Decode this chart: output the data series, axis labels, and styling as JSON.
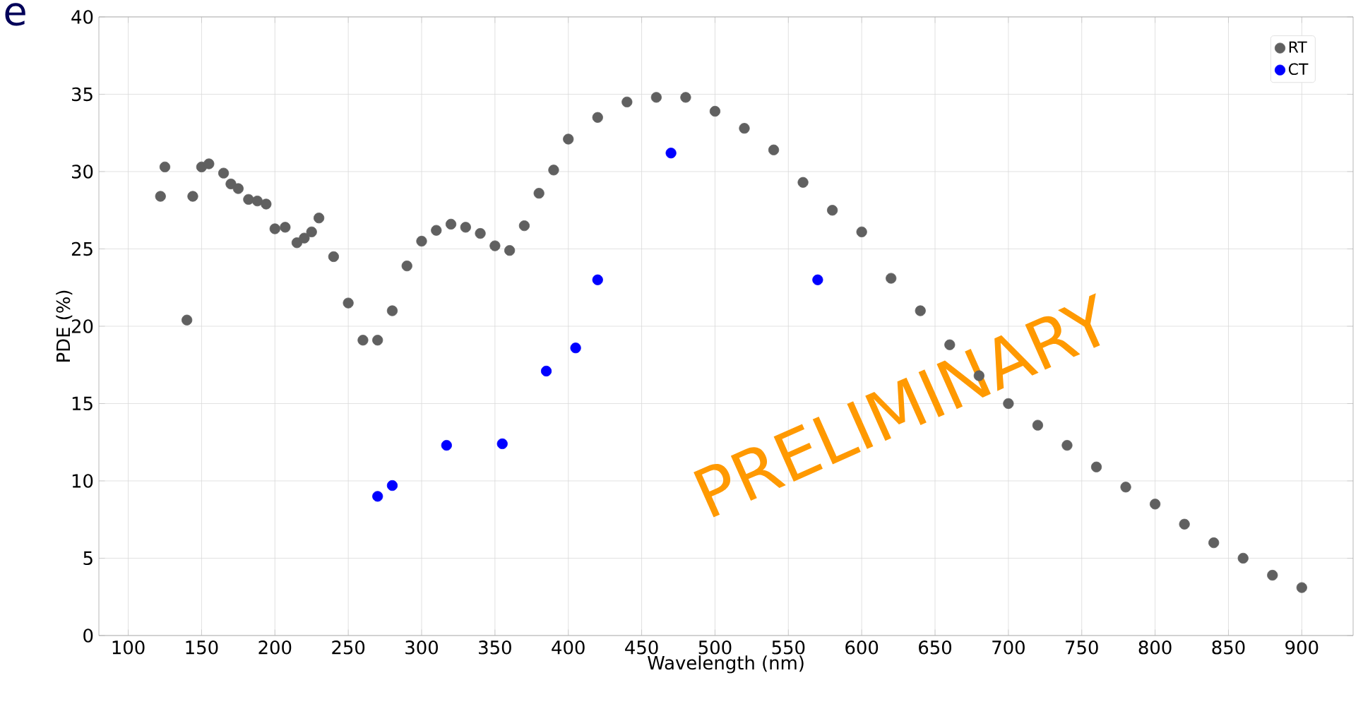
{
  "chart_data": {
    "type": "scatter",
    "xlabel": "Wavelength (nm)",
    "ylabel": "PDE (%)",
    "xlim": [
      80,
      935
    ],
    "ylim": [
      0,
      40
    ],
    "xticks": [
      100,
      150,
      200,
      250,
      300,
      350,
      400,
      450,
      500,
      550,
      600,
      650,
      700,
      750,
      800,
      850,
      900
    ],
    "yticks": [
      0,
      5,
      10,
      15,
      20,
      25,
      30,
      35,
      40
    ],
    "grid": true,
    "legend": "top right",
    "annotations": [
      "e",
      "PRELIMINARY"
    ],
    "series": [
      {
        "name": "RT",
        "color": "#606060",
        "x": [
          122,
          125,
          140,
          144,
          150,
          155,
          165,
          170,
          175,
          182,
          188,
          194,
          200,
          207,
          215,
          220,
          225,
          230,
          240,
          250,
          260,
          270,
          280,
          290,
          300,
          310,
          320,
          330,
          340,
          350,
          360,
          370,
          380,
          390,
          400,
          420,
          440,
          460,
          480,
          500,
          520,
          540,
          560,
          580,
          600,
          620,
          640,
          660,
          680,
          700,
          720,
          740,
          760,
          780,
          800,
          820,
          840,
          860,
          880,
          900
        ],
        "values": [
          28.4,
          30.3,
          20.4,
          28.4,
          30.3,
          30.5,
          29.9,
          29.2,
          28.9,
          28.2,
          28.1,
          27.9,
          26.3,
          26.4,
          25.4,
          25.7,
          26.1,
          27.0,
          24.5,
          21.5,
          19.1,
          19.1,
          21.0,
          23.9,
          25.5,
          26.2,
          26.6,
          26.4,
          26.0,
          25.2,
          24.9,
          26.5,
          28.6,
          30.1,
          32.1,
          33.5,
          34.5,
          34.8,
          34.8,
          33.9,
          32.8,
          31.4,
          29.3,
          27.5,
          26.1,
          23.1,
          21.0,
          18.8,
          16.8,
          15.0,
          13.6,
          12.3,
          10.9,
          9.6,
          8.5,
          7.2,
          6.0,
          5.0,
          3.9,
          3.1
        ]
      },
      {
        "name": "CT",
        "color": "#0000ff",
        "x": [
          270,
          280,
          317,
          355,
          385,
          405,
          420,
          470,
          570
        ],
        "values": [
          9.0,
          9.7,
          12.3,
          12.4,
          17.1,
          18.6,
          23.0,
          31.2,
          23.0
        ]
      }
    ]
  }
}
